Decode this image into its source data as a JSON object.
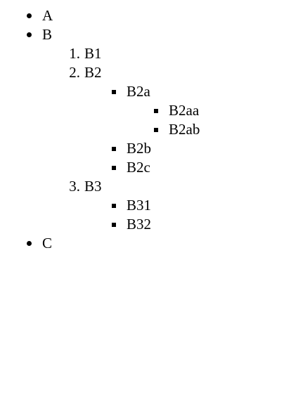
{
  "list": {
    "item_a": "A",
    "item_b": "B",
    "item_b1_num": "1.",
    "item_b1": "B1",
    "item_b2_num": "2.",
    "item_b2": "B2",
    "item_b2a": "B2a",
    "item_b2aa": "B2aa",
    "item_b2ab": "B2ab",
    "item_b2b": "B2b",
    "item_b2c": "B2c",
    "item_b3_num": "3.",
    "item_b3": "B3",
    "item_b31": "B31",
    "item_b32": "B32",
    "item_c": "C"
  }
}
